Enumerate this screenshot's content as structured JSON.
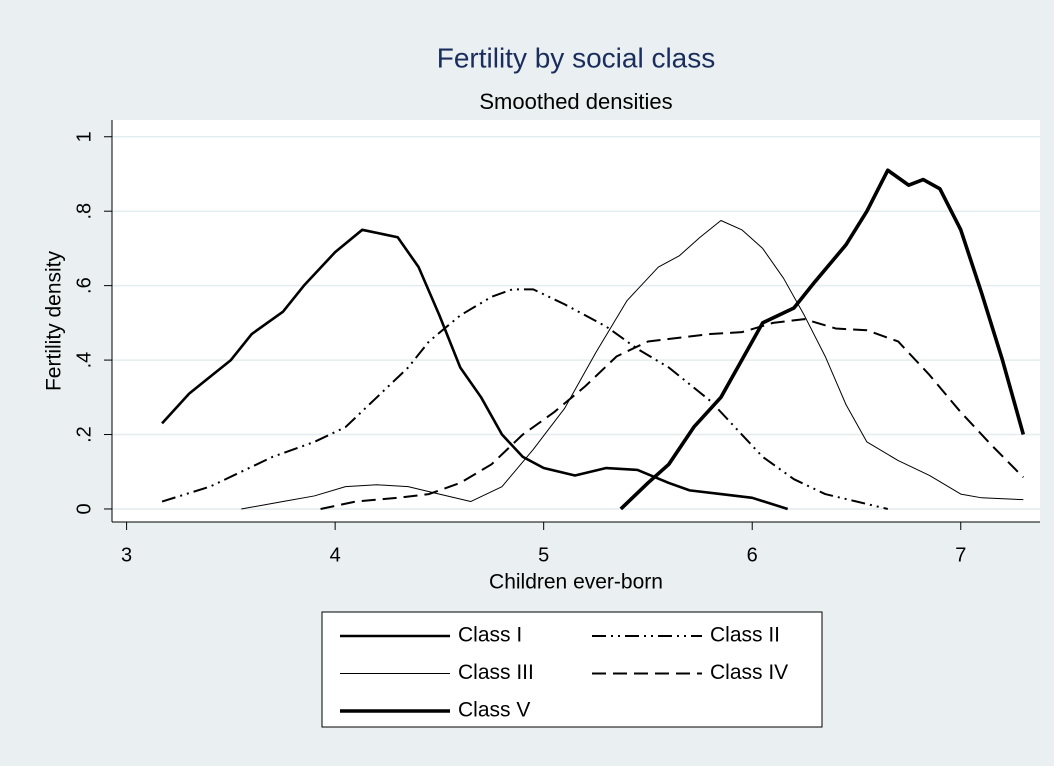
{
  "chart_data": {
    "type": "line",
    "title": "Fertility by social class",
    "subtitle": "Smoothed densities",
    "x_label": "Children ever-born",
    "y_label": "Fertility density",
    "xlim": [
      2.93,
      7.38
    ],
    "ylim": [
      -0.035,
      1.045
    ],
    "xticks": [
      3,
      4,
      5,
      6,
      7
    ],
    "yticks": [
      0,
      {
        "value": 0.2,
        "label": ".2"
      },
      {
        "value": 0.4,
        "label": ".4"
      },
      {
        "value": 0.6,
        "label": ".6"
      },
      {
        "value": 0.8,
        "label": ".8"
      },
      1
    ],
    "grid": true,
    "legend": "bottom",
    "series": [
      {
        "name": "Class I",
        "color": "#000000",
        "linestyle": "solid",
        "x": [
          3.17,
          3.3,
          3.5,
          3.6,
          3.75,
          3.85,
          4.0,
          4.13,
          4.3,
          4.4,
          4.5,
          4.6,
          4.7,
          4.8,
          4.9,
          5.0,
          5.15,
          5.3,
          5.45,
          5.6,
          5.7,
          5.85,
          6.0,
          6.17
        ],
        "values": [
          0.23,
          0.31,
          0.4,
          0.47,
          0.53,
          0.6,
          0.69,
          0.75,
          0.73,
          0.65,
          0.52,
          0.38,
          0.3,
          0.2,
          0.14,
          0.11,
          0.09,
          0.11,
          0.105,
          0.07,
          0.05,
          0.04,
          0.03,
          0.0
        ]
      },
      {
        "name": "Class II",
        "color": "#000000",
        "linestyle": "dash-dot-dot",
        "x": [
          3.17,
          3.4,
          3.55,
          3.7,
          3.9,
          4.05,
          4.2,
          4.35,
          4.45,
          4.6,
          4.75,
          4.85,
          4.95,
          5.1,
          5.3,
          5.45,
          5.6,
          5.8,
          5.95,
          6.05,
          6.2,
          6.35,
          6.5,
          6.65
        ],
        "values": [
          0.02,
          0.06,
          0.1,
          0.14,
          0.18,
          0.22,
          0.3,
          0.38,
          0.45,
          0.52,
          0.57,
          0.59,
          0.59,
          0.55,
          0.49,
          0.43,
          0.38,
          0.29,
          0.2,
          0.14,
          0.08,
          0.04,
          0.02,
          0.0
        ]
      },
      {
        "name": "Class III",
        "color": "#000000",
        "linestyle": "thin",
        "x": [
          3.55,
          3.75,
          3.9,
          4.05,
          4.2,
          4.35,
          4.5,
          4.65,
          4.8,
          4.95,
          5.1,
          5.25,
          5.4,
          5.55,
          5.65,
          5.75,
          5.85,
          5.95,
          6.05,
          6.15,
          6.25,
          6.35,
          6.45,
          6.55,
          6.7,
          6.85,
          7.0,
          7.1,
          7.3
        ],
        "values": [
          0.0,
          0.02,
          0.035,
          0.06,
          0.065,
          0.06,
          0.04,
          0.02,
          0.06,
          0.16,
          0.27,
          0.42,
          0.56,
          0.65,
          0.68,
          0.73,
          0.775,
          0.75,
          0.7,
          0.62,
          0.52,
          0.41,
          0.28,
          0.18,
          0.13,
          0.09,
          0.04,
          0.03,
          0.025
        ]
      },
      {
        "name": "Class IV",
        "color": "#000000",
        "linestyle": "dash",
        "x": [
          3.93,
          4.1,
          4.3,
          4.45,
          4.6,
          4.75,
          4.9,
          5.05,
          5.2,
          5.35,
          5.5,
          5.65,
          5.8,
          5.95,
          6.1,
          6.25,
          6.4,
          6.55,
          6.7,
          6.85,
          7.0,
          7.15,
          7.3
        ],
        "values": [
          0.0,
          0.02,
          0.03,
          0.04,
          0.07,
          0.12,
          0.2,
          0.26,
          0.33,
          0.41,
          0.45,
          0.46,
          0.47,
          0.475,
          0.5,
          0.51,
          0.485,
          0.48,
          0.45,
          0.36,
          0.26,
          0.17,
          0.085
        ]
      },
      {
        "name": "Class V",
        "color": "#000000",
        "linestyle": "thick",
        "x": [
          5.37,
          5.5,
          5.6,
          5.72,
          5.85,
          5.95,
          6.05,
          6.2,
          6.3,
          6.45,
          6.55,
          6.65,
          6.75,
          6.82,
          6.9,
          7.0,
          7.1,
          7.2,
          7.3
        ],
        "values": [
          0.0,
          0.07,
          0.12,
          0.22,
          0.3,
          0.4,
          0.5,
          0.54,
          0.61,
          0.71,
          0.8,
          0.91,
          0.87,
          0.885,
          0.86,
          0.75,
          0.58,
          0.4,
          0.2
        ]
      }
    ]
  }
}
